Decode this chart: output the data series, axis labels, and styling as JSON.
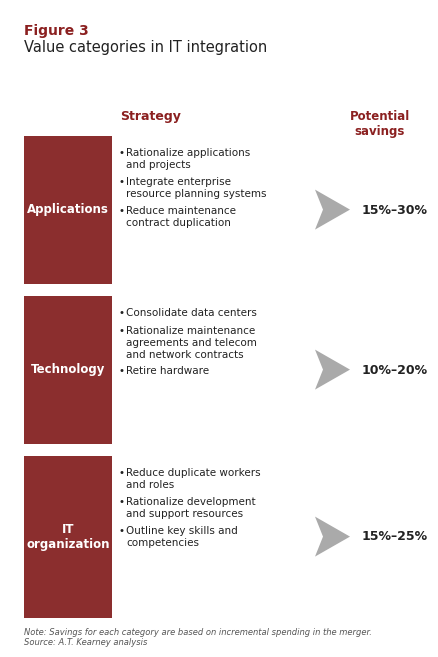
{
  "title_bold": "Figure 3",
  "title_main": "Value categories in IT integration",
  "title_bold_color": "#8B2020",
  "title_main_color": "#222222",
  "bg_color": "#FFFFFF",
  "box_color": "#8B2E2E",
  "box_text_color": "#FFFFFF",
  "arrow_color": "#AAAAAA",
  "header_strategy": "Strategy",
  "header_savings": "Potential\nsavings",
  "header_color": "#8B2020",
  "categories": [
    {
      "label": "Applications",
      "bullets": [
        "Rationalize applications\nand projects",
        "Integrate enterprise\nresource planning systems",
        "Reduce maintenance\ncontract duplication"
      ],
      "savings": "15%–30%"
    },
    {
      "label": "Technology",
      "bullets": [
        "Consolidate data centers",
        "Rationalize maintenance\nagreements and telecom\nand network contracts",
        "Retire hardware"
      ],
      "savings": "10%–20%"
    },
    {
      "label": "IT\norganization",
      "bullets": [
        "Reduce duplicate workers\nand roles",
        "Rationalize development\nand support resources",
        "Outline key skills and\ncompetencies"
      ],
      "savings": "15%–25%"
    }
  ],
  "note_text": "Note: Savings for each category are based on incremental spending in the merger.\nSource: A.T. Kearney analysis"
}
